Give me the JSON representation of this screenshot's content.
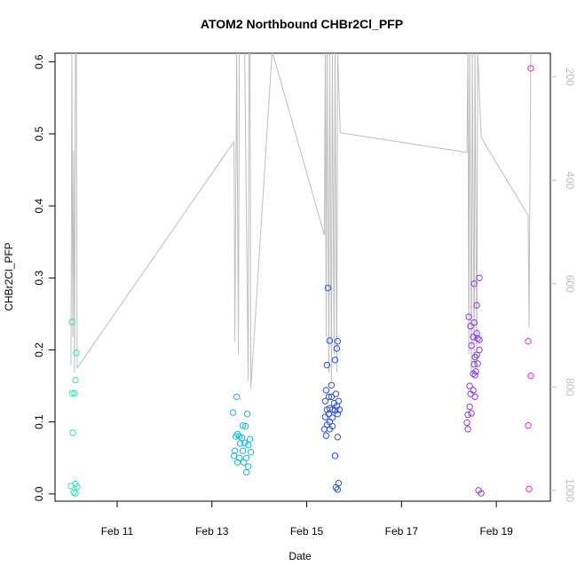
{
  "chart_data": {
    "type": "scatter",
    "title": "ATOM2 Northbound CHBr2Cl_PFP",
    "x_label": "Date",
    "y_label": "CHBr2Cl_PFP",
    "xlim": [
      9.69,
      20.14
    ],
    "xticks": [
      {
        "value": 11,
        "label": "Feb 11"
      },
      {
        "value": 13,
        "label": "Feb 13"
      },
      {
        "value": 15,
        "label": "Feb 15"
      },
      {
        "value": 17,
        "label": "Feb 17"
      },
      {
        "value": 19,
        "label": "Feb 19"
      }
    ],
    "ylim": [
      -0.01,
      0.612
    ],
    "yticks": [
      {
        "value": 0,
        "label": "0.0"
      },
      0.1,
      0.2,
      0.3,
      0.4,
      0.5,
      0.6
    ],
    "y2lim": [
      1021,
      154
    ],
    "y2ticks": [
      200,
      400,
      600,
      800,
      1000
    ],
    "y2tick_color": "#bebebe",
    "series": [
      {
        "color": "#bebebe",
        "axis": "y2",
        "x": [
          10.026,
          10.045,
          10.064,
          10.083,
          10.101,
          10.12,
          10.139,
          10.157,
          13.466,
          13.484,
          13.522,
          13.559,
          13.578,
          13.69,
          13.765,
          13.783,
          13.802,
          13.821,
          14.27,
          15.372,
          15.391,
          15.409,
          15.428,
          15.466,
          15.484,
          15.521,
          15.54,
          15.578,
          15.597,
          15.634,
          15.652,
          15.708,
          18.38,
          18.4,
          18.419,
          18.438,
          18.475,
          18.494,
          18.531,
          18.55,
          18.587,
          18.606,
          18.68,
          19.672,
          19.69,
          19.727
        ],
        "values": [
          758,
          150,
          703,
          342,
          772,
          150,
          150,
          763,
          325,
          712,
          150,
          737,
          150,
          150,
          789,
          150,
          150,
          803,
          150,
          506,
          150,
          703,
          150,
          772,
          150,
          789,
          150,
          737,
          150,
          772,
          150,
          308,
          346,
          150,
          737,
          150,
          772,
          150,
          755,
          150,
          763,
          150,
          317,
          468,
          686,
          150
        ]
      },
      {
        "color": "#2ee8b0",
        "x": [
          10.05,
          10.139,
          10.12,
          10.05,
          10.101,
          10.064,
          10.026,
          10.12,
          10.157,
          10.083,
          10.12
        ],
        "values": [
          0.239,
          0.196,
          0.158,
          0.14,
          0.14,
          0.085,
          0.011,
          0.014,
          0.01,
          0.002,
          0.001
        ]
      },
      {
        "color": "#1fb4e8",
        "x": [
          13.522,
          13.447,
          13.746,
          13.653,
          13.709,
          13.54,
          13.503,
          13.578,
          13.634,
          13.802,
          13.69,
          13.597,
          13.765,
          13.484,
          13.653,
          13.821,
          13.466,
          13.578,
          13.727,
          13.54,
          13.671,
          13.765,
          13.727
        ],
        "values": [
          0.135,
          0.113,
          0.111,
          0.095,
          0.094,
          0.083,
          0.08,
          0.08,
          0.078,
          0.076,
          0.071,
          0.07,
          0.068,
          0.06,
          0.06,
          0.058,
          0.053,
          0.05,
          0.05,
          0.044,
          0.044,
          0.038,
          0.03
        ]
      },
      {
        "color": "#2a4ee6",
        "x": [
          15.447,
          15.484,
          15.652,
          15.634,
          15.597,
          15.428,
          15.521,
          15.409,
          15.615,
          15.466,
          15.521,
          15.391,
          15.671,
          15.578,
          15.634,
          15.484,
          15.428,
          15.54,
          15.597,
          15.69,
          15.466,
          15.652,
          15.391,
          15.54,
          15.484,
          15.428,
          15.54,
          15.372,
          15.484,
          15.409,
          15.652,
          15.597,
          15.671,
          15.615,
          15.652
        ],
        "values": [
          0.286,
          0.213,
          0.212,
          0.202,
          0.186,
          0.179,
          0.151,
          0.144,
          0.139,
          0.135,
          0.135,
          0.129,
          0.129,
          0.126,
          0.122,
          0.119,
          0.117,
          0.117,
          0.116,
          0.117,
          0.111,
          0.111,
          0.107,
          0.106,
          0.1,
          0.096,
          0.094,
          0.09,
          0.09,
          0.081,
          0.079,
          0.053,
          0.015,
          0.009,
          0.006
        ]
      },
      {
        "color": "#8a3ae6",
        "x": [
          18.643,
          18.531,
          18.587,
          18.419,
          18.531,
          18.456,
          18.587,
          18.512,
          18.606,
          18.643,
          18.475,
          18.643,
          18.587,
          18.55,
          18.606,
          18.531,
          18.568,
          18.512,
          18.55,
          18.438,
          18.512,
          18.456,
          18.55,
          18.438,
          18.4,
          18.475,
          18.38,
          18.4,
          18.624,
          18.68
        ],
        "values": [
          0.3,
          0.292,
          0.262,
          0.246,
          0.238,
          0.233,
          0.223,
          0.218,
          0.216,
          0.214,
          0.206,
          0.2,
          0.193,
          0.19,
          0.181,
          0.18,
          0.17,
          0.167,
          0.165,
          0.15,
          0.144,
          0.139,
          0.135,
          0.121,
          0.11,
          0.112,
          0.099,
          0.09,
          0.005,
          0.001
        ]
      },
      {
        "color": "#e22ee2",
        "x": [
          19.727,
          19.672,
          19.727,
          19.672,
          19.69
        ],
        "values": [
          0.591,
          0.212,
          0.164,
          0.095,
          0.007
        ]
      }
    ]
  }
}
